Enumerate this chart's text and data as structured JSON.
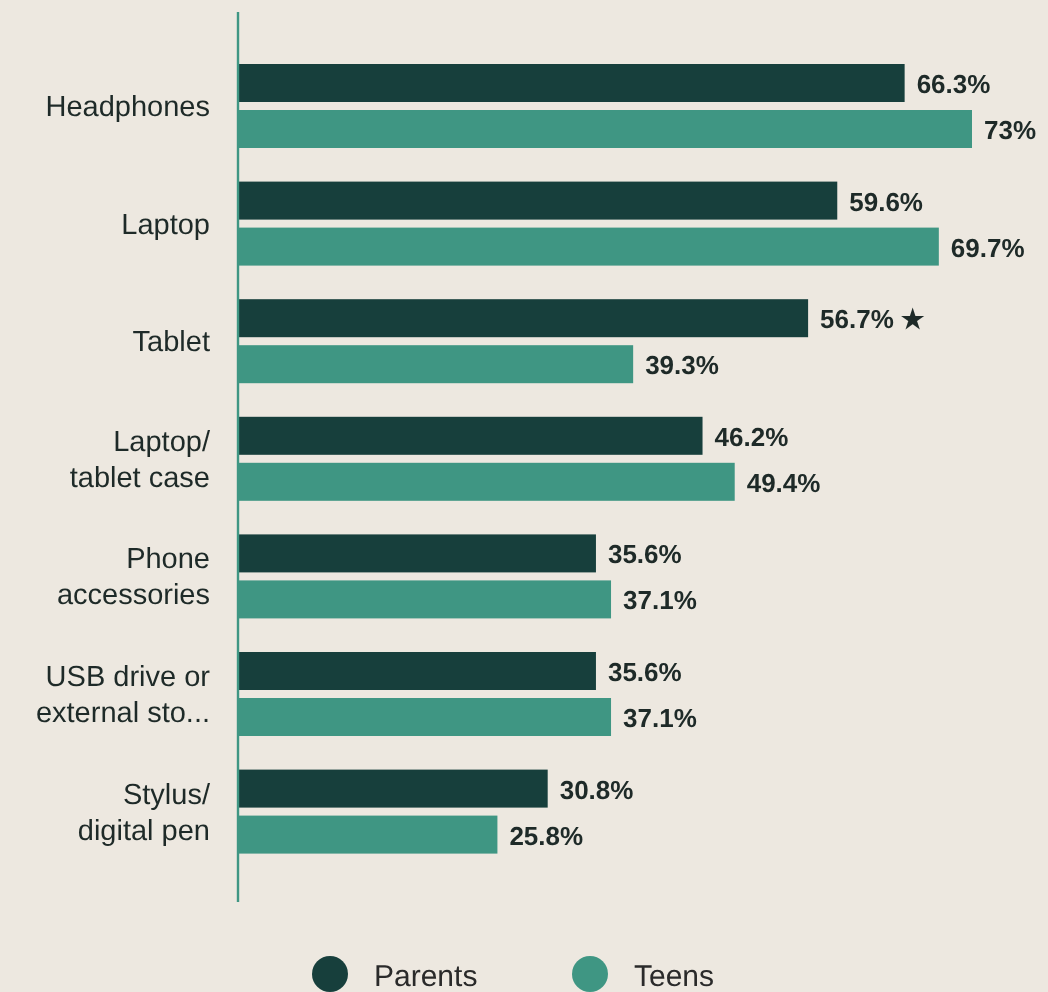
{
  "chart_data": {
    "type": "bar",
    "orientation": "horizontal",
    "categories": [
      "Headphones",
      "Laptop",
      "Tablet",
      "Laptop/ tablet case",
      "Phone accessories",
      "USB drive or external sto...",
      "Stylus/ digital pen"
    ],
    "series": [
      {
        "name": "Parents",
        "color": "#173f3c",
        "values": [
          66.3,
          59.6,
          56.7,
          46.2,
          35.6,
          35.6,
          30.8
        ],
        "value_labels": [
          "66.3%",
          "59.6%",
          "56.7% ★",
          "46.2%",
          "35.6%",
          "35.6%",
          "30.8%"
        ]
      },
      {
        "name": "Teens",
        "color": "#3f9683",
        "values": [
          73,
          69.7,
          39.3,
          49.4,
          37.1,
          37.1,
          25.8
        ],
        "value_labels": [
          "73%",
          "69.7%",
          "39.3%",
          "49.4%",
          "37.1%",
          "37.1%",
          "25.8%"
        ]
      }
    ],
    "legend": "bottom"
  }
}
